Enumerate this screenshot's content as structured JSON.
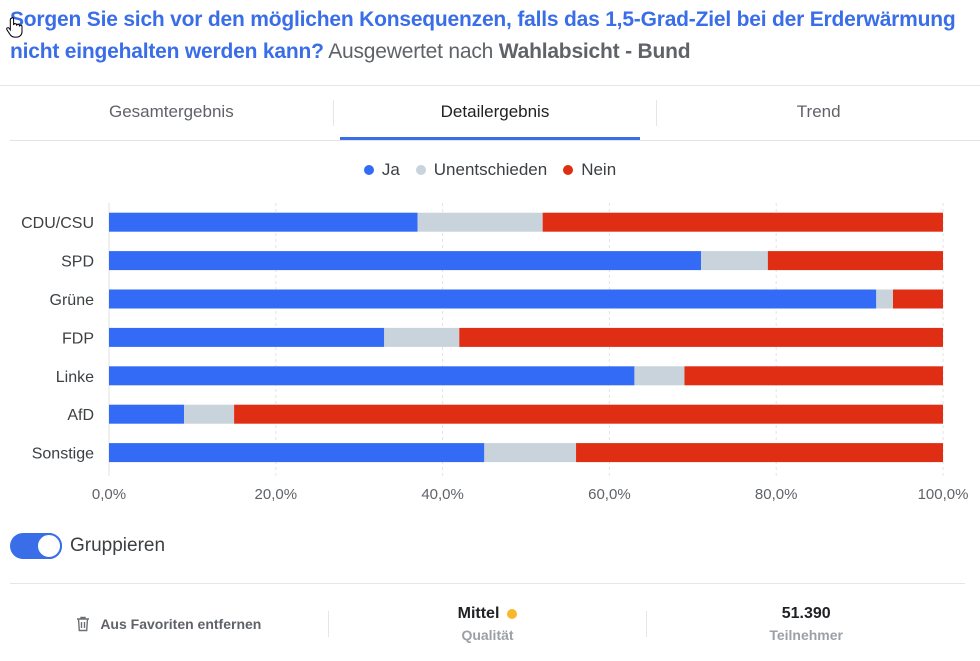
{
  "header": {
    "question": "Sorgen Sie sich vor den möglichen Konsequenzen, falls das 1,5-Grad-Ziel bei der Erderwärmung nicht eingehalten werden kann?",
    "evaluated_prefix": "Ausgewertet nach",
    "evaluated_by": "Wahlabsicht - Bund"
  },
  "tabs": [
    {
      "label": "Gesamtergebnis",
      "active": false
    },
    {
      "label": "Detailergebnis",
      "active": true
    },
    {
      "label": "Trend",
      "active": false
    }
  ],
  "colors": {
    "ja": "#336bf6",
    "unentschieden": "#c8d3dc",
    "nein": "#e02e14",
    "accent": "#3a6ee8",
    "quality": "#f9b82b"
  },
  "chart_data": {
    "type": "bar",
    "orientation": "horizontal",
    "stacked": true,
    "categories": [
      "CDU/CSU",
      "SPD",
      "Grüne",
      "FDP",
      "Linke",
      "AfD",
      "Sonstige"
    ],
    "series": [
      {
        "name": "Ja",
        "color": "#336bf6",
        "values": [
          37,
          71,
          92,
          33,
          63,
          9,
          45
        ]
      },
      {
        "name": "Unentschieden",
        "color": "#c8d3dc",
        "values": [
          15,
          8,
          2,
          9,
          6,
          6,
          11
        ]
      },
      {
        "name": "Nein",
        "color": "#e02e14",
        "values": [
          48,
          21,
          6,
          58,
          31,
          85,
          44
        ]
      }
    ],
    "xlim": [
      0,
      100
    ],
    "xticks": [
      "0,0%",
      "20,0%",
      "40,0%",
      "60,0%",
      "80,0%",
      "100,0%"
    ],
    "grid": true,
    "legend": "top-center",
    "title": "",
    "xlabel": "",
    "ylabel": ""
  },
  "toggle": {
    "label": "Gruppieren",
    "on": true
  },
  "footer": {
    "favorite_label": "Aus Favoriten entfernen",
    "quality_value": "Mittel",
    "quality_label": "Qualität",
    "participants_value": "51.390",
    "participants_label": "Teilnehmer"
  }
}
